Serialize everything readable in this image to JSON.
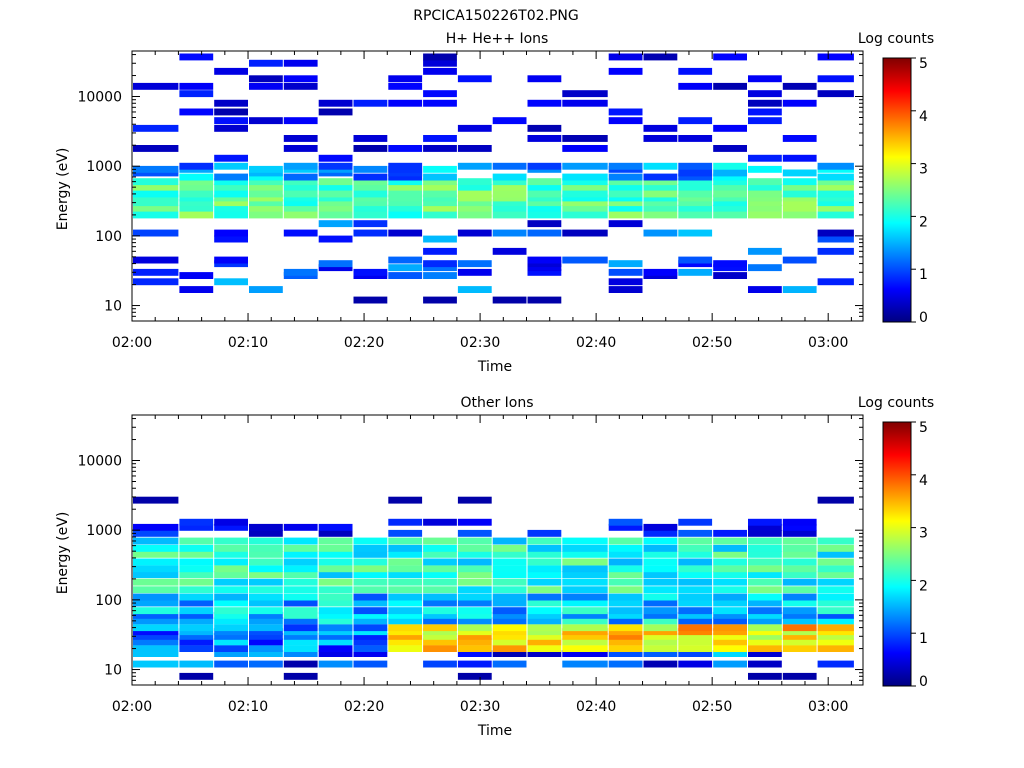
{
  "figure_title": "RPCICA150226T02.PNG",
  "chart_data": [
    {
      "type": "heatmap",
      "title": "H+ He++ Ions",
      "xlabel": "Time",
      "ylabel": "Energy (eV)",
      "x_range": [
        "02:00",
        "03:03"
      ],
      "x_ticks": [
        "02:00",
        "02:10",
        "02:20",
        "02:30",
        "02:40",
        "02:50",
        "03:00"
      ],
      "y_scale": "log",
      "y_range": [
        6,
        45000
      ],
      "y_ticks": [
        "10",
        "100",
        "1000",
        "10000"
      ],
      "colorbar": {
        "label": "Log counts",
        "range": [
          0,
          5
        ],
        "ticks": [
          "0",
          "1",
          "2",
          "3",
          "4",
          "5"
        ]
      },
      "time_bins": [
        "02:00",
        "02:04",
        "02:07",
        "02:10",
        "02:13",
        "02:16",
        "02:19",
        "02:22",
        "02:25",
        "02:28",
        "02:31",
        "02:34",
        "02:37",
        "02:41",
        "02:44",
        "02:47",
        "02:50",
        "02:53",
        "02:56",
        "02:59"
      ],
      "energy_bins_eV": [
        12,
        17,
        22,
        27,
        30,
        35,
        40,
        45,
        60,
        90,
        110,
        150,
        200,
        250,
        300,
        350,
        400,
        500,
        600,
        700,
        800,
        900,
        1000,
        1300,
        1800,
        2500,
        3500,
        4500,
        6000,
        8000,
        11000,
        14000,
        18000,
        23000,
        30000,
        37000
      ],
      "description_of_values": "log10 counts per bin; strongest emission 0.5-1 log counts scattered above 1 keV, main band 2-2.7 log counts between 200 and 600 eV"
    },
    {
      "type": "heatmap",
      "title": "Other Ions",
      "xlabel": "Time",
      "ylabel": "Energy (eV)",
      "x_range": [
        "02:00",
        "03:03"
      ],
      "x_ticks": [
        "02:00",
        "02:10",
        "02:20",
        "02:30",
        "02:40",
        "02:50",
        "03:00"
      ],
      "y_scale": "log",
      "y_range": [
        6,
        45000
      ],
      "y_ticks": [
        "10",
        "100",
        "1000",
        "10000"
      ],
      "colorbar": {
        "label": "Log counts",
        "range": [
          0,
          5
        ],
        "ticks": [
          "0",
          "1",
          "2",
          "3",
          "4",
          "5"
        ]
      },
      "time_bins": [
        "02:00",
        "02:04",
        "02:07",
        "02:10",
        "02:13",
        "02:16",
        "02:19",
        "02:22",
        "02:25",
        "02:28",
        "02:31",
        "02:34",
        "02:37",
        "02:41",
        "02:44",
        "02:47",
        "02:50",
        "02:53",
        "02:56",
        "02:59"
      ],
      "energy_bins_eV": [
        8,
        12,
        17,
        20,
        25,
        30,
        35,
        40,
        50,
        60,
        70,
        90,
        110,
        140,
        180,
        230,
        280,
        350,
        450,
        550,
        700,
        900,
        1100,
        1300,
        2700,
        3400
      ],
      "description_of_values": "log10 counts; broad band 1.5-2.5 from 30 eV to 800 eV, intense band 3-4 log counts at 25-40 eV after 02:20"
    }
  ]
}
